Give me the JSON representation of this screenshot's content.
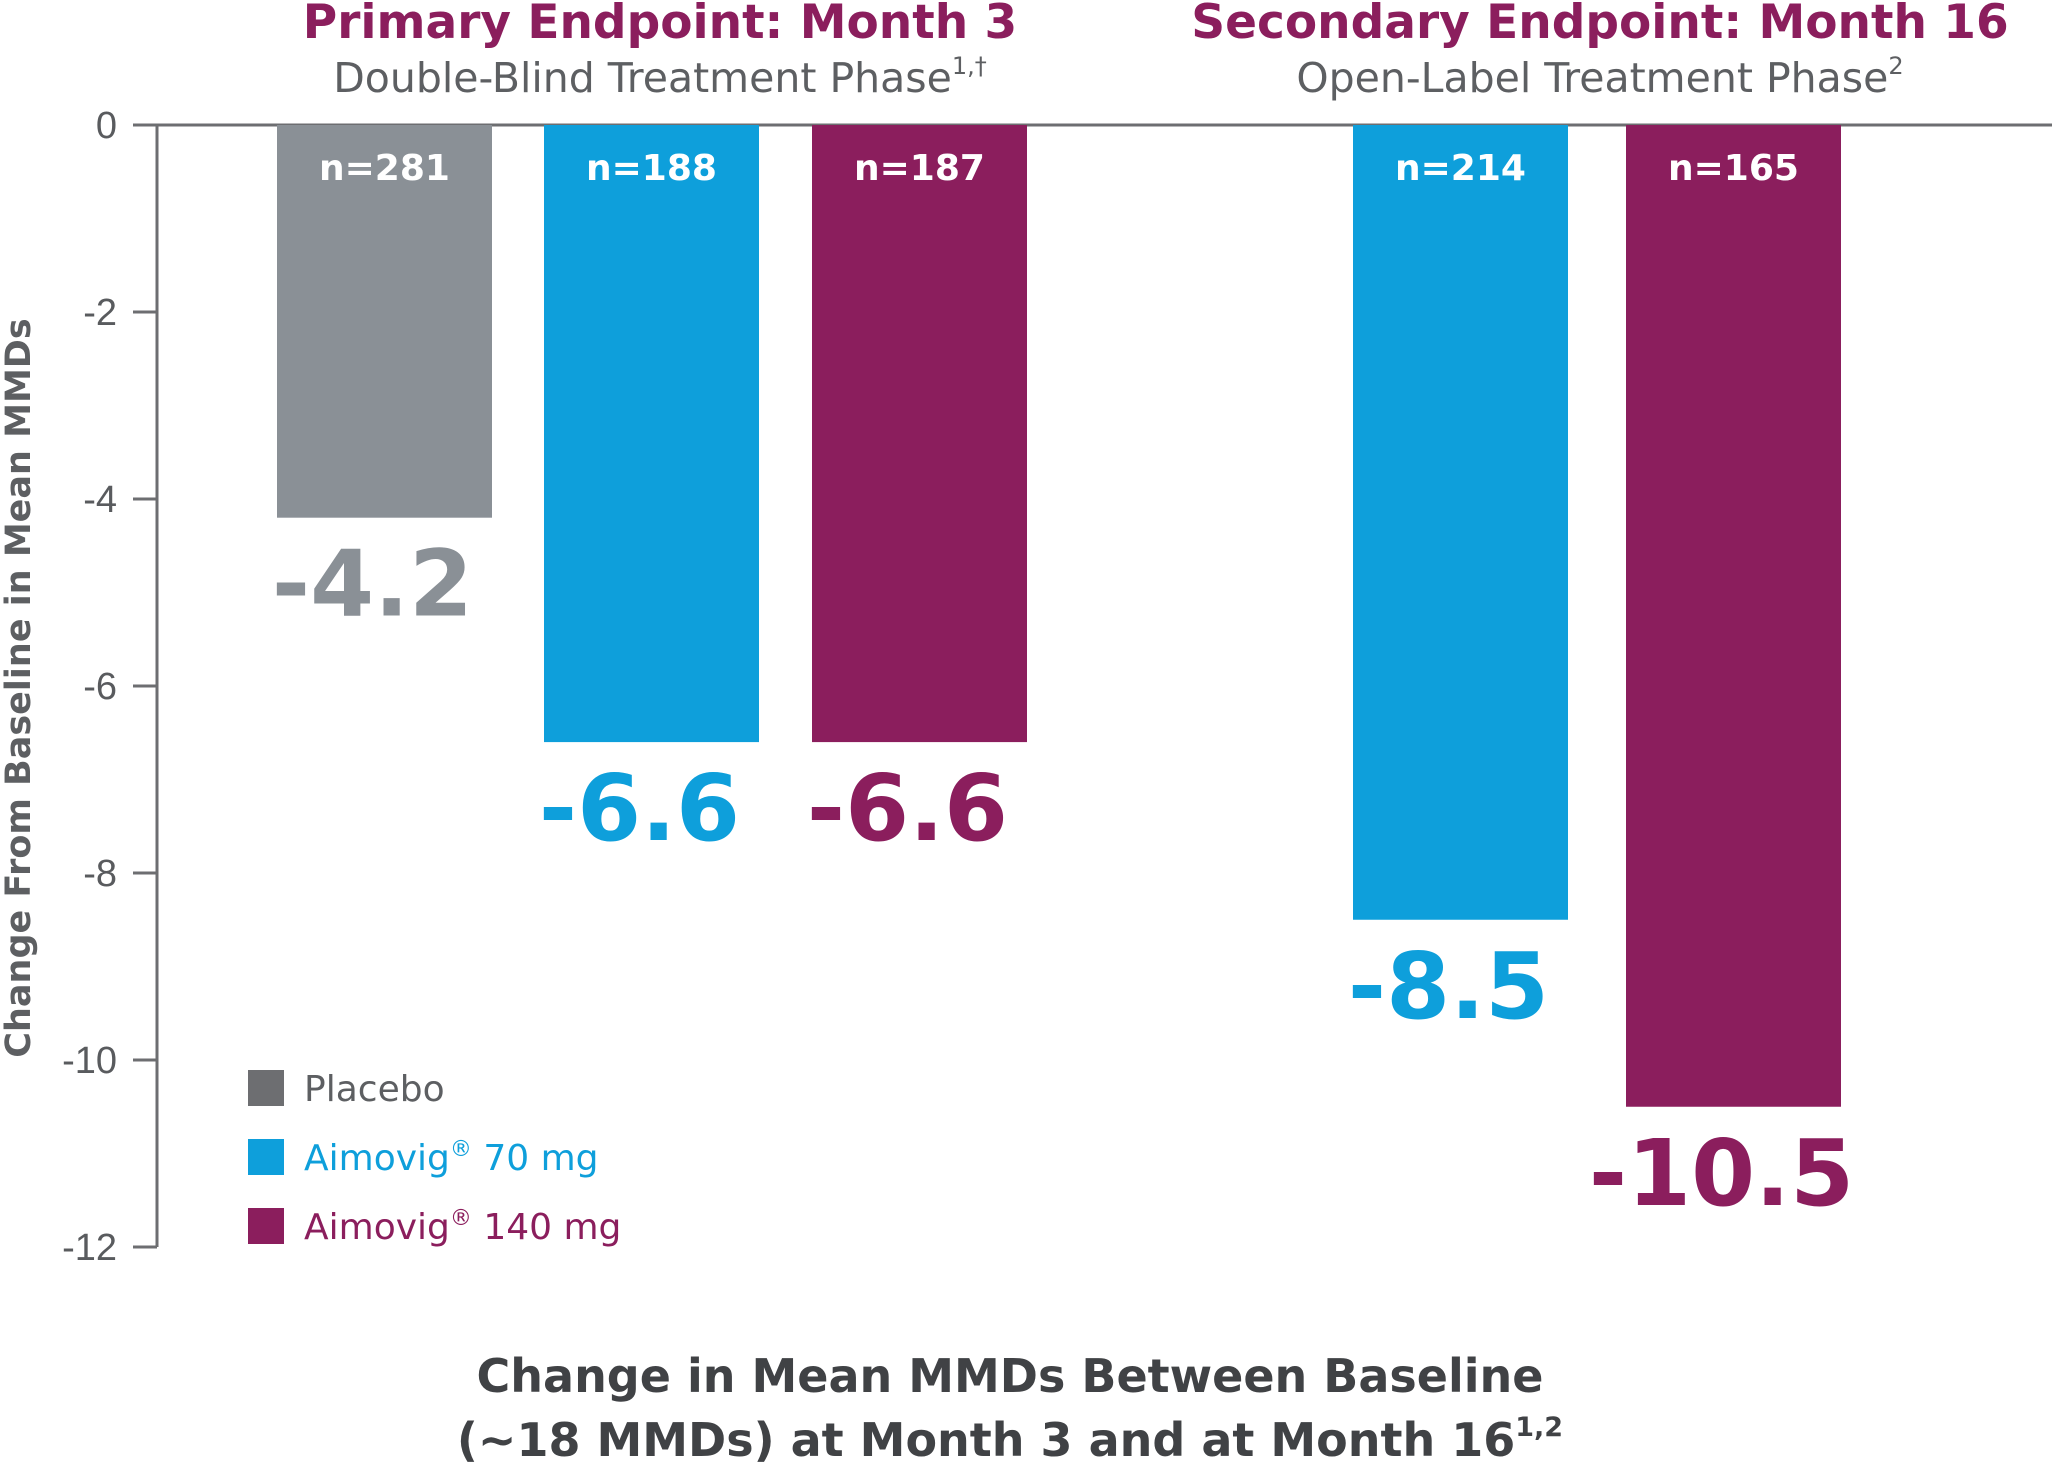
{
  "chart_data": {
    "type": "bar",
    "ylabel": "Change From Baseline in Mean MMDs",
    "ylim": [
      -12,
      0
    ],
    "yticks": [
      "0",
      "-2",
      "-4",
      "-6",
      "-8",
      "-10",
      "-12"
    ],
    "groups": [
      {
        "title": "Primary Endpoint: Month 3",
        "subtitle": "Double-Blind Treatment Phase",
        "subtitle_sup": "1,†"
      },
      {
        "title": "Secondary Endpoint: Month 16",
        "subtitle": "Open-Label Treatment Phase",
        "subtitle_sup": "2"
      }
    ],
    "bars": [
      {
        "group": 0,
        "series": "Placebo",
        "value": -4.2,
        "label": "-4.2",
        "n": "n=281"
      },
      {
        "group": 0,
        "series": "Aimovig 70 mg",
        "value": -6.6,
        "label": "-6.6",
        "n": "n=188"
      },
      {
        "group": 0,
        "series": "Aimovig 140 mg",
        "value": -6.6,
        "label": "-6.6",
        "n": "n=187"
      },
      {
        "group": 1,
        "series": "Aimovig 70 mg",
        "value": -8.5,
        "label": "-8.5",
        "n": "n=214"
      },
      {
        "group": 1,
        "series": "Aimovig 140 mg",
        "value": -10.5,
        "label": "-10.5",
        "n": "n=165"
      }
    ],
    "legend": [
      {
        "label": "Placebo",
        "registered": "",
        "dose": "",
        "color": "#6d6e71",
        "text_color": "#5d5f62"
      },
      {
        "label": "Aimovig",
        "registered": "®",
        "dose": " 70 mg",
        "color": "#0e9fdb",
        "text_color": "#0e9fdb"
      },
      {
        "label": "Aimovig",
        "registered": "®",
        "dose": " 140 mg",
        "color": "#8b1e5d",
        "text_color": "#8b1e5d"
      }
    ],
    "colors": {
      "Placebo": "#8a9096",
      "Placebo_label": "#8a9096",
      "Aimovig 70 mg": "#0e9fdb",
      "Aimovig 140 mg": "#8b1e5d"
    },
    "caption": {
      "line1": "Change in Mean MMDs Between Baseline",
      "line2": "(~18 MMDs) at Month 3 and at Month 16",
      "line2_sup": "1,2"
    }
  }
}
